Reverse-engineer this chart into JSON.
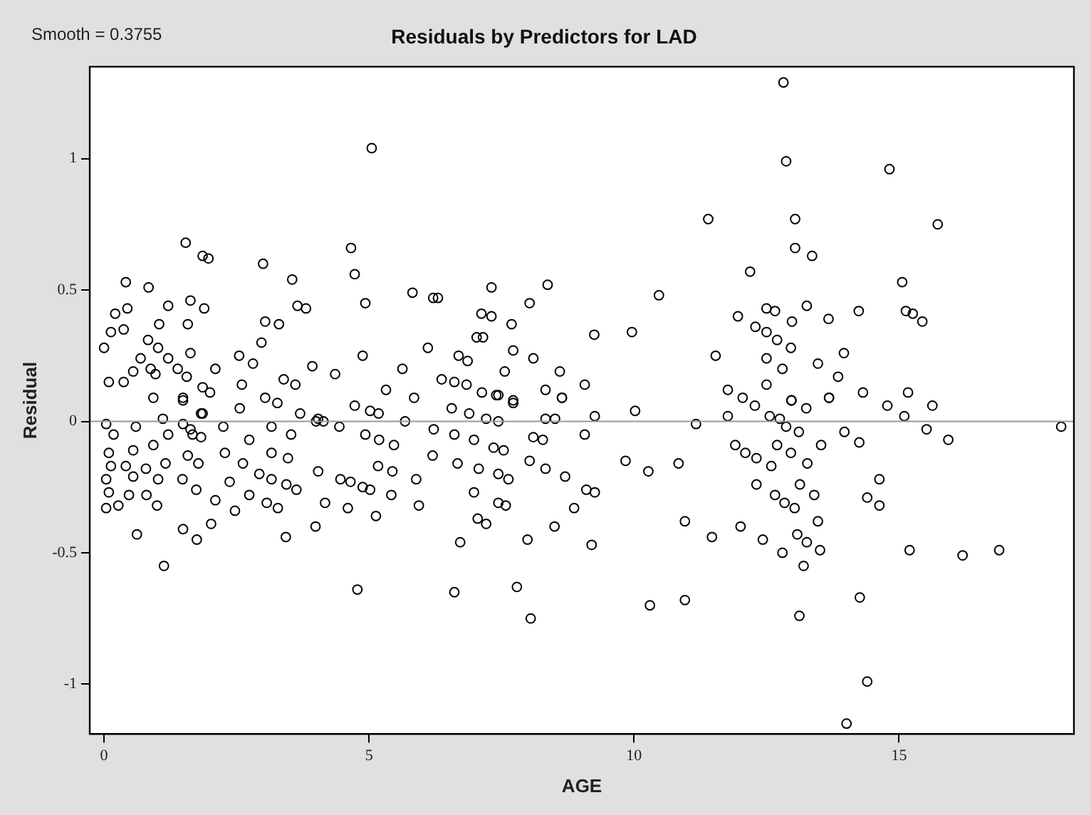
{
  "chart_data": {
    "type": "scatter",
    "title": "Residuals by Predictors for LAD",
    "xlabel": "AGE",
    "ylabel": "Residual",
    "annotations": [
      "Smooth = 0.3755"
    ],
    "xlim": [
      -0.27,
      18.3
    ],
    "xticks": [
      0,
      5,
      10,
      15
    ],
    "ylim": [
      -1.19,
      1.35
    ],
    "yticks": [
      -1,
      -0.5,
      0,
      0.5,
      1
    ],
    "grid": false,
    "legend": false,
    "marker": "circle",
    "ref_lines": [
      {
        "axis": "y",
        "value": 0,
        "color": "#999999"
      }
    ],
    "series": [
      {
        "color": "#000000",
        "x": [
          5.05,
          1.54,
          1.86,
          1.97,
          3.0,
          3.55,
          4.66,
          4.73,
          0.41,
          0.84,
          0.21,
          0.44,
          1.21,
          1.63,
          1.89,
          1.04,
          1.58,
          3.65,
          3.81,
          3.04,
          3.3,
          4.93,
          5.82,
          6.21,
          6.3,
          7.31,
          8.37,
          8.03,
          7.12,
          7.31,
          7.69,
          7.03,
          7.15,
          7.72,
          8.1,
          8.6,
          7.56,
          6.69,
          6.86,
          6.11,
          5.63,
          4.88,
          3.93,
          4.36,
          2.97,
          2.81,
          2.55,
          2.1,
          1.63,
          0.83,
          1.02,
          0.37,
          0.13,
          0.0,
          1.21,
          1.39,
          1.56,
          5.32,
          6.37,
          6.61,
          6.84,
          7.13,
          7.44,
          7.72,
          8.33,
          8.64,
          2.6,
          3.39,
          3.61,
          1.86,
          2.0,
          1.49,
          0.09,
          0.37,
          0.55,
          0.69,
          0.88,
          0.97,
          12.82,
          12.87,
          14.82,
          11.4,
          13.04,
          15.73,
          13.04,
          13.36,
          12.19,
          15.06,
          10.47,
          9.25,
          9.96,
          9.07,
          12.5,
          12.66,
          12.98,
          11.96,
          12.29,
          12.5,
          12.7,
          12.96,
          13.26,
          13.67,
          14.24,
          15.13,
          15.26,
          15.44,
          13.96,
          13.47,
          13.85,
          14.32,
          15.17,
          11.54,
          12.5,
          12.8,
          11.77,
          12.5,
          12.97,
          13.68,
          1.13,
          0.62,
          1.49,
          1.75,
          2.02,
          2.47,
          3.43,
          3.99,
          4.78,
          4.6,
          5.13,
          6.61,
          6.72,
          7.79,
          8.05,
          7.99,
          8.5,
          7.05,
          7.21,
          5.94,
          5.42,
          4.17,
          3.07,
          3.28,
          2.1,
          1.0,
          0.27,
          0.04,
          0.8,
          0.47,
          1.74,
          1.48,
          2.37,
          2.74,
          2.93,
          3.16,
          3.44,
          3.63,
          4.04,
          4.46,
          4.65,
          4.88,
          5.02,
          5.17,
          5.44,
          5.89,
          6.2,
          6.67,
          7.07,
          7.44,
          7.63,
          6.98,
          7.44,
          7.58,
          8.03,
          8.33,
          8.7,
          6.61,
          6.98,
          7.35,
          7.54,
          8.1,
          8.28,
          4.93,
          5.19,
          5.47,
          6.22,
          3.7,
          4.04,
          4.44,
          3.16,
          3.53,
          2.74,
          3.16,
          3.47,
          2.25,
          1.86,
          1.67,
          1.83,
          2.28,
          2.62,
          1.58,
          1.78,
          0.93,
          1.16,
          1.02,
          0.55,
          0.79,
          0.04,
          0.18,
          0.09,
          0.13,
          0.04,
          0.09,
          0.41,
          0.55,
          5.68,
          8.33,
          8.51,
          4.73,
          5.02,
          5.18,
          6.56,
          6.89,
          7.21,
          7.44,
          5.85,
          7.4,
          7.72,
          8.64,
          2.56,
          3.04,
          3.27,
          4.0,
          4.14,
          1.49,
          0.93,
          1.83,
          0.6,
          1.11,
          1.21,
          1.49,
          1.63,
          14.01,
          14.4,
          13.12,
          10.3,
          10.96,
          14.26,
          9.2,
          15.2,
          16.2,
          16.89,
          10.96,
          11.47,
          12.01,
          12.43,
          12.8,
          13.2,
          13.51,
          13.47,
          13.08,
          13.26,
          14.4,
          14.63,
          14.63,
          12.31,
          12.66,
          12.84,
          13.03,
          13.13,
          13.4,
          11.91,
          12.1,
          12.31,
          12.59,
          12.7,
          12.96,
          13.27,
          9.07,
          9.84,
          10.27,
          10.84,
          9.1,
          9.26,
          8.87,
          11.17,
          11.77,
          12.56,
          12.75,
          12.87,
          13.11,
          13.53,
          13.97,
          14.25,
          15.52,
          15.93,
          18.06,
          9.26,
          10.02,
          12.05,
          12.28,
          12.97,
          13.25,
          13.68,
          14.78,
          15.1,
          15.63
        ],
        "values": [
          1.04,
          0.68,
          0.63,
          0.62,
          0.6,
          0.54,
          0.66,
          0.56,
          0.53,
          0.51,
          0.41,
          0.43,
          0.44,
          0.46,
          0.43,
          0.37,
          0.37,
          0.44,
          0.43,
          0.38,
          0.37,
          0.45,
          0.49,
          0.47,
          0.47,
          0.51,
          0.52,
          0.45,
          0.41,
          0.4,
          0.37,
          0.32,
          0.32,
          0.27,
          0.24,
          0.19,
          0.19,
          0.25,
          0.23,
          0.28,
          0.2,
          0.25,
          0.21,
          0.18,
          0.3,
          0.22,
          0.25,
          0.2,
          0.26,
          0.31,
          0.28,
          0.35,
          0.34,
          0.28,
          0.24,
          0.2,
          0.17,
          0.12,
          0.16,
          0.15,
          0.14,
          0.11,
          0.1,
          0.08,
          0.12,
          0.09,
          0.14,
          0.16,
          0.14,
          0.13,
          0.11,
          0.08,
          0.15,
          0.15,
          0.19,
          0.24,
          0.2,
          0.18,
          1.29,
          0.99,
          0.96,
          0.77,
          0.77,
          0.75,
          0.66,
          0.63,
          0.57,
          0.53,
          0.48,
          0.33,
          0.34,
          0.14,
          0.43,
          0.42,
          0.38,
          0.4,
          0.36,
          0.34,
          0.31,
          0.28,
          0.44,
          0.39,
          0.42,
          0.42,
          0.41,
          0.38,
          0.26,
          0.22,
          0.17,
          0.11,
          0.11,
          0.25,
          0.24,
          0.2,
          0.12,
          0.14,
          0.08,
          0.09,
          -0.55,
          -0.43,
          -0.41,
          -0.45,
          -0.39,
          -0.34,
          -0.44,
          -0.4,
          -0.64,
          -0.33,
          -0.36,
          -0.65,
          -0.46,
          -0.63,
          -0.75,
          -0.45,
          -0.4,
          -0.37,
          -0.39,
          -0.32,
          -0.28,
          -0.31,
          -0.31,
          -0.33,
          -0.3,
          -0.32,
          -0.32,
          -0.33,
          -0.28,
          -0.28,
          -0.26,
          -0.22,
          -0.23,
          -0.28,
          -0.2,
          -0.22,
          -0.24,
          -0.26,
          -0.19,
          -0.22,
          -0.23,
          -0.25,
          -0.26,
          -0.17,
          -0.19,
          -0.22,
          -0.13,
          -0.16,
          -0.18,
          -0.2,
          -0.22,
          -0.27,
          -0.31,
          -0.32,
          -0.15,
          -0.18,
          -0.21,
          -0.05,
          -0.07,
          -0.1,
          -0.11,
          -0.06,
          -0.07,
          -0.05,
          -0.07,
          -0.09,
          -0.03,
          0.03,
          0.01,
          -0.02,
          -0.02,
          -0.05,
          -0.07,
          -0.12,
          -0.14,
          -0.02,
          0.03,
          -0.05,
          -0.06,
          -0.12,
          -0.16,
          -0.13,
          -0.16,
          -0.09,
          -0.16,
          -0.22,
          -0.21,
          -0.18,
          -0.01,
          -0.05,
          -0.12,
          -0.17,
          -0.22,
          -0.27,
          -0.17,
          -0.11,
          0.0,
          0.01,
          0.01,
          0.06,
          0.04,
          0.03,
          0.05,
          0.03,
          0.01,
          0.0,
          0.09,
          0.1,
          0.07,
          0.09,
          0.05,
          0.09,
          0.07,
          0.0,
          0.0,
          0.09,
          0.09,
          0.03,
          -0.02,
          0.01,
          -0.05,
          -0.01,
          -0.03,
          -1.15,
          -0.99,
          -0.74,
          -0.7,
          -0.68,
          -0.67,
          -0.47,
          -0.49,
          -0.51,
          -0.49,
          -0.38,
          -0.44,
          -0.4,
          -0.45,
          -0.5,
          -0.55,
          -0.49,
          -0.38,
          -0.43,
          -0.46,
          -0.29,
          -0.32,
          -0.22,
          -0.24,
          -0.28,
          -0.31,
          -0.33,
          -0.24,
          -0.28,
          -0.09,
          -0.12,
          -0.14,
          -0.17,
          -0.09,
          -0.12,
          -0.16,
          -0.05,
          -0.15,
          -0.19,
          -0.16,
          -0.26,
          -0.27,
          -0.33,
          -0.01,
          0.02,
          0.02,
          0.01,
          -0.02,
          -0.04,
          -0.09,
          -0.04,
          -0.08,
          -0.03,
          -0.07,
          -0.02,
          0.02,
          0.04,
          0.09,
          0.06,
          0.08,
          0.05,
          0.09,
          0.06,
          0.02,
          0.06
        ]
      }
    ]
  }
}
